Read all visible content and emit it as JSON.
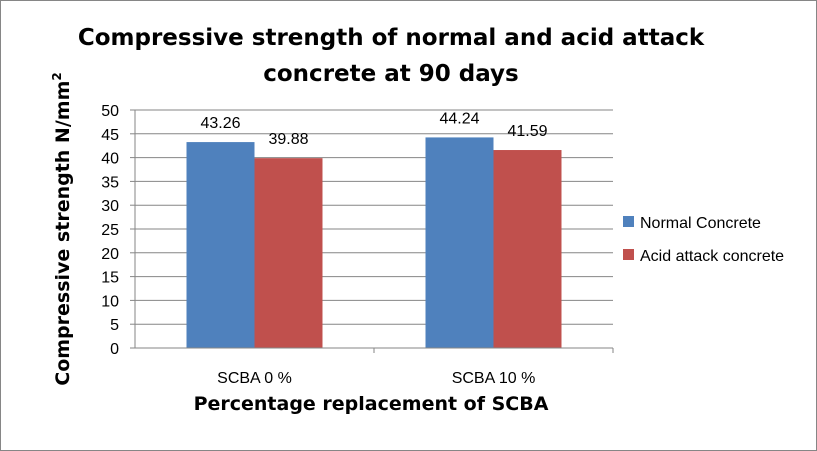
{
  "chart_data": {
    "type": "bar",
    "title_lines": [
      "Compressive strength of normal and acid attack",
      "concrete at 90 days"
    ],
    "xlabel": "Percentage replacement of SCBA",
    "ylabel": "Compressive strength N/mm",
    "ylabel_superscript": "2",
    "categories": [
      "SCBA 0 %",
      "SCBA 10 %"
    ],
    "series": [
      {
        "name": "Normal Concrete",
        "color": "#4f81bd",
        "values": [
          43.26,
          44.24
        ],
        "labels": [
          "43.26",
          "44.24"
        ]
      },
      {
        "name": "Acid attack concrete",
        "color": "#c0504d",
        "values": [
          39.88,
          41.59
        ],
        "labels": [
          "39.88",
          "41.59"
        ]
      }
    ],
    "ylim": [
      0,
      50
    ],
    "yticks": [
      "0",
      "5",
      "10",
      "15",
      "20",
      "25",
      "30",
      "35",
      "40",
      "45",
      "50"
    ],
    "grid": true,
    "legend_position": "right"
  }
}
